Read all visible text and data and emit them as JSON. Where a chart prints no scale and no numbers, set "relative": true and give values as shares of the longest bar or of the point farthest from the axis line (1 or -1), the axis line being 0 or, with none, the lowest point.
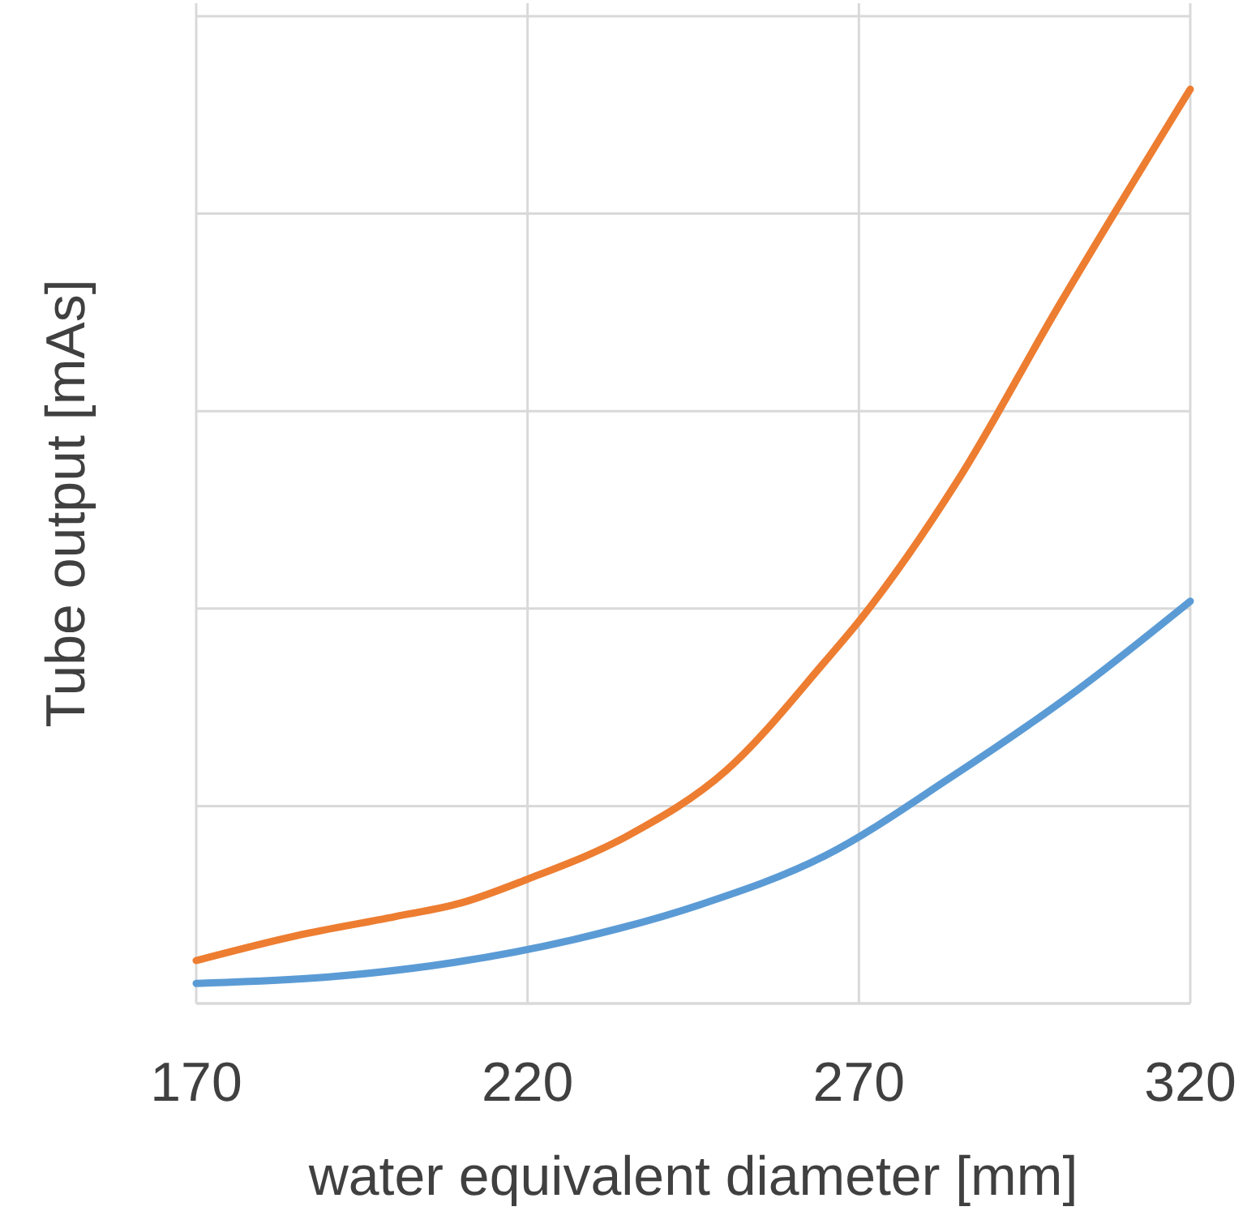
{
  "chart_data": {
    "type": "line",
    "relative": true,
    "xlabel": "water equivalent diameter [mm]",
    "ylabel": "Tube output [mAs]",
    "xlim": [
      170,
      320
    ],
    "xticks": [
      170,
      220,
      270,
      320
    ],
    "grid": true,
    "marker": "none",
    "line_style": "solid",
    "series": [
      {
        "color": "#ed7d31",
        "x": [
          170,
          185,
          200,
          210,
          220,
          235,
          250,
          265,
          270,
          285,
          300,
          320
        ],
        "values": [
          0.047,
          0.074,
          0.095,
          0.11,
          0.136,
          0.183,
          0.255,
          0.375,
          0.418,
          0.573,
          0.761,
          1
        ]
      },
      {
        "color": "#5b9bd5",
        "x": [
          170,
          190,
          209,
          227,
          246,
          265,
          284,
          303,
          320
        ],
        "values": [
          0.022,
          0.029,
          0.045,
          0.07,
          0.108,
          0.162,
          0.248,
          0.343,
          0.44
        ]
      }
    ]
  }
}
